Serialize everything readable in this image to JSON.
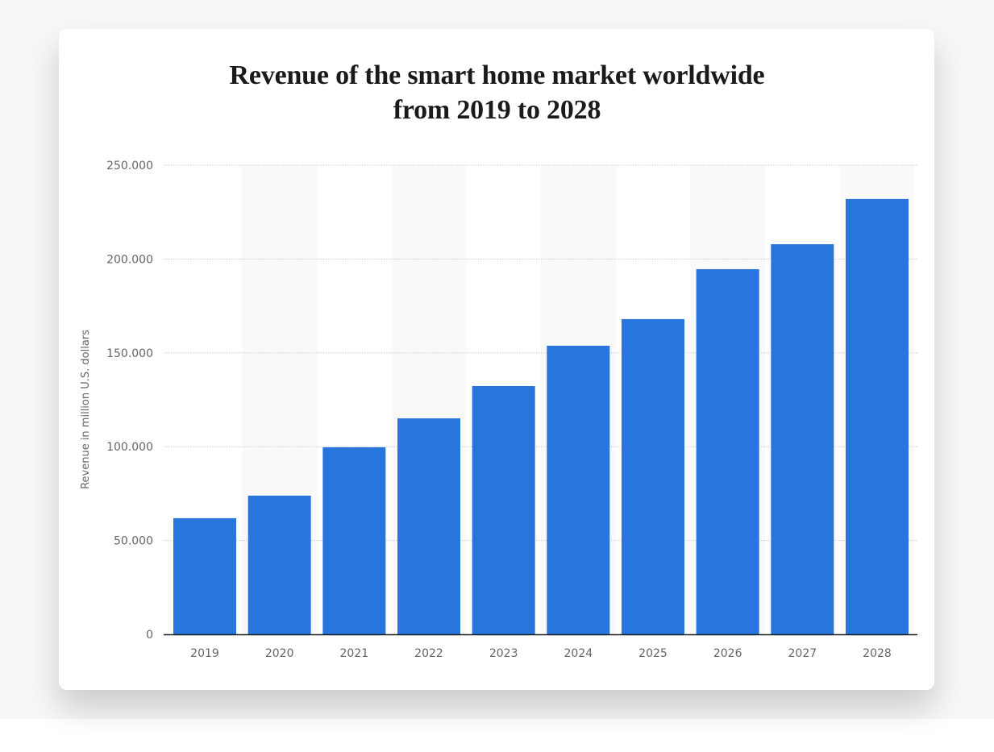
{
  "page": {
    "title_line1": "Revenue of the smart home market worldwide",
    "title_line2": "from 2019 to 2028"
  },
  "colors": {
    "bar": "#2876dd",
    "grid": "#cccccc",
    "alt_band": "#f9f9f9",
    "axis": "#1a1a1a",
    "tick_text": "#666666"
  },
  "chart_data": {
    "type": "bar",
    "title": "Revenue of the smart home market worldwide from 2019 to 2028",
    "xlabel": "",
    "ylabel": "Revenue in million U.S. dollars",
    "categories": [
      "2019",
      "2020",
      "2021",
      "2022",
      "2023",
      "2024",
      "2025",
      "2026",
      "2027",
      "2028"
    ],
    "values": [
      61900,
      73900,
      99700,
      115100,
      132300,
      153800,
      168000,
      194600,
      207900,
      232000
    ],
    "ylim": [
      0,
      250000
    ],
    "yticks": [
      0,
      50000,
      100000,
      150000,
      200000,
      250000
    ],
    "ytick_labels": [
      "0",
      "50.000",
      "100.000",
      "150.000",
      "200.000",
      "250.000"
    ],
    "grid": true,
    "legend": "none"
  }
}
